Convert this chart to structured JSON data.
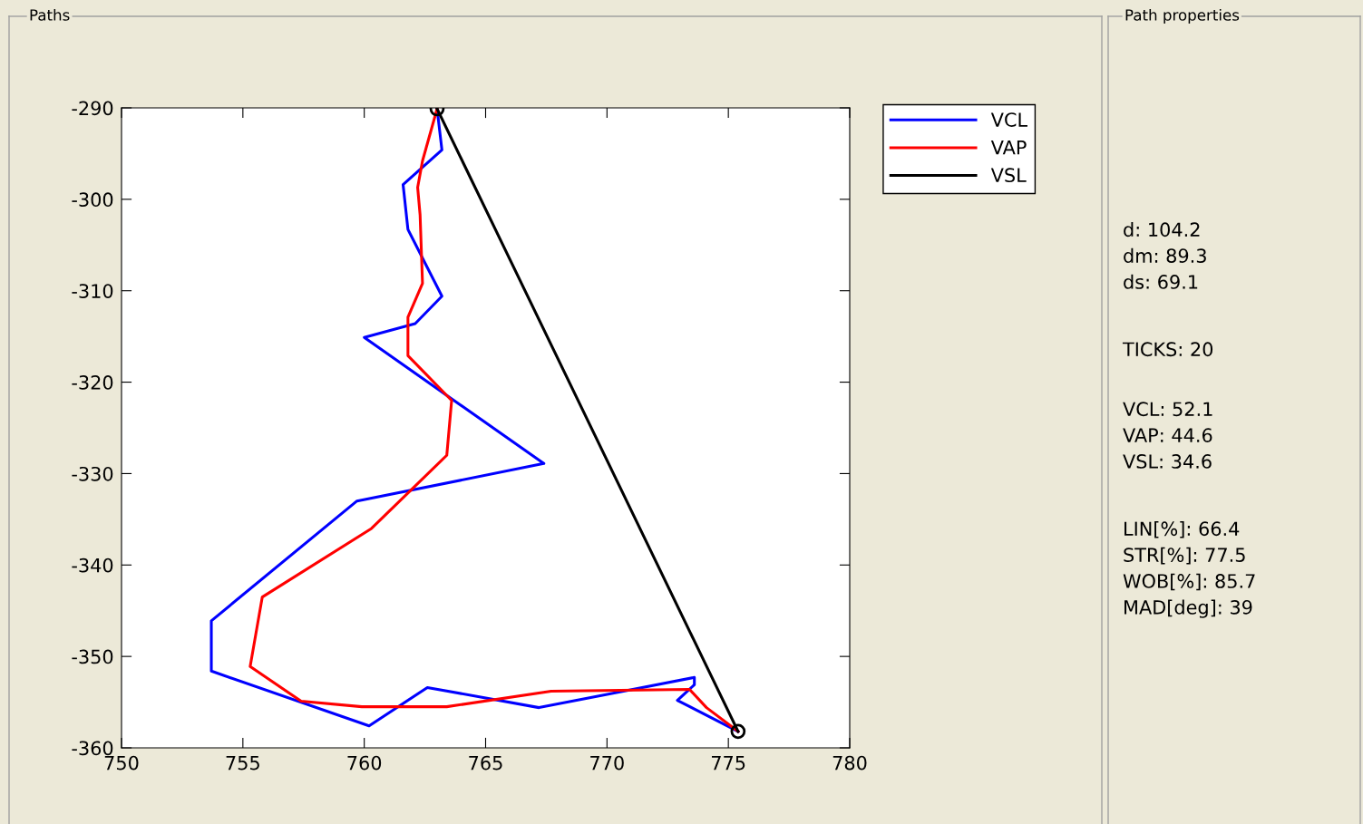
{
  "chart_data": {
    "type": "line",
    "x": [
      763.0,
      763.2,
      761.6,
      761.8,
      763.2,
      762.1,
      760.0,
      767.4,
      759.7,
      753.7,
      753.7,
      760.2,
      762.6,
      767.2,
      773.6,
      773.6,
      772.9,
      775.4
    ],
    "series": [
      {
        "name": "VCL",
        "color": "#0000ff",
        "values": [
          -290.1,
          -294.6,
          -298.4,
          -303.3,
          -310.6,
          -313.6,
          -315.1,
          -328.9,
          -333.0,
          -346.1,
          -351.6,
          -357.6,
          -353.4,
          -355.6,
          -352.3,
          -353.1,
          -354.8,
          -358.2
        ]
      },
      {
        "name": "VAP",
        "color": "#ff0000",
        "x": [
          763.0,
          762.4,
          762.2,
          762.3,
          762.4,
          761.8,
          761.8,
          763.6,
          763.4,
          760.3,
          755.8,
          755.3,
          757.4,
          759.9,
          763.4,
          767.7,
          773.4,
          774.1,
          775.4
        ],
        "values": [
          -290.1,
          -295.8,
          -298.7,
          -301.7,
          -309.2,
          -312.9,
          -317.1,
          -322.0,
          -328.0,
          -336.0,
          -343.5,
          -351.1,
          -354.9,
          -355.5,
          -355.5,
          -353.8,
          -353.6,
          -355.6,
          -358.2
        ]
      },
      {
        "name": "VSL",
        "color": "#000000",
        "x": [
          763.0,
          775.4
        ],
        "values": [
          -290.1,
          -358.2
        ],
        "marker": "circle"
      }
    ],
    "xlim": [
      750,
      780
    ],
    "xticks": [
      750,
      755,
      760,
      765,
      770,
      775,
      780
    ],
    "ylim": [
      -360,
      -290
    ],
    "yticks": [
      -360,
      -350,
      -340,
      -330,
      -320,
      -310,
      -300,
      -290
    ],
    "grid": false,
    "legend": "top right",
    "marker": "none",
    "line_style": "solid",
    "annotations": [
      "Paths",
      "Path properties",
      "d: 104.2\ndm: 89.3\nds: 69.1",
      "TICKS: 20",
      "VCL: 52.1\nVAP: 44.6\nVSL: 34.6",
      "LIN[%]: 66.4\nSTR[%]: 77.5\nWOB[%]: 85.7\nMAD[deg]: 39"
    ]
  }
}
